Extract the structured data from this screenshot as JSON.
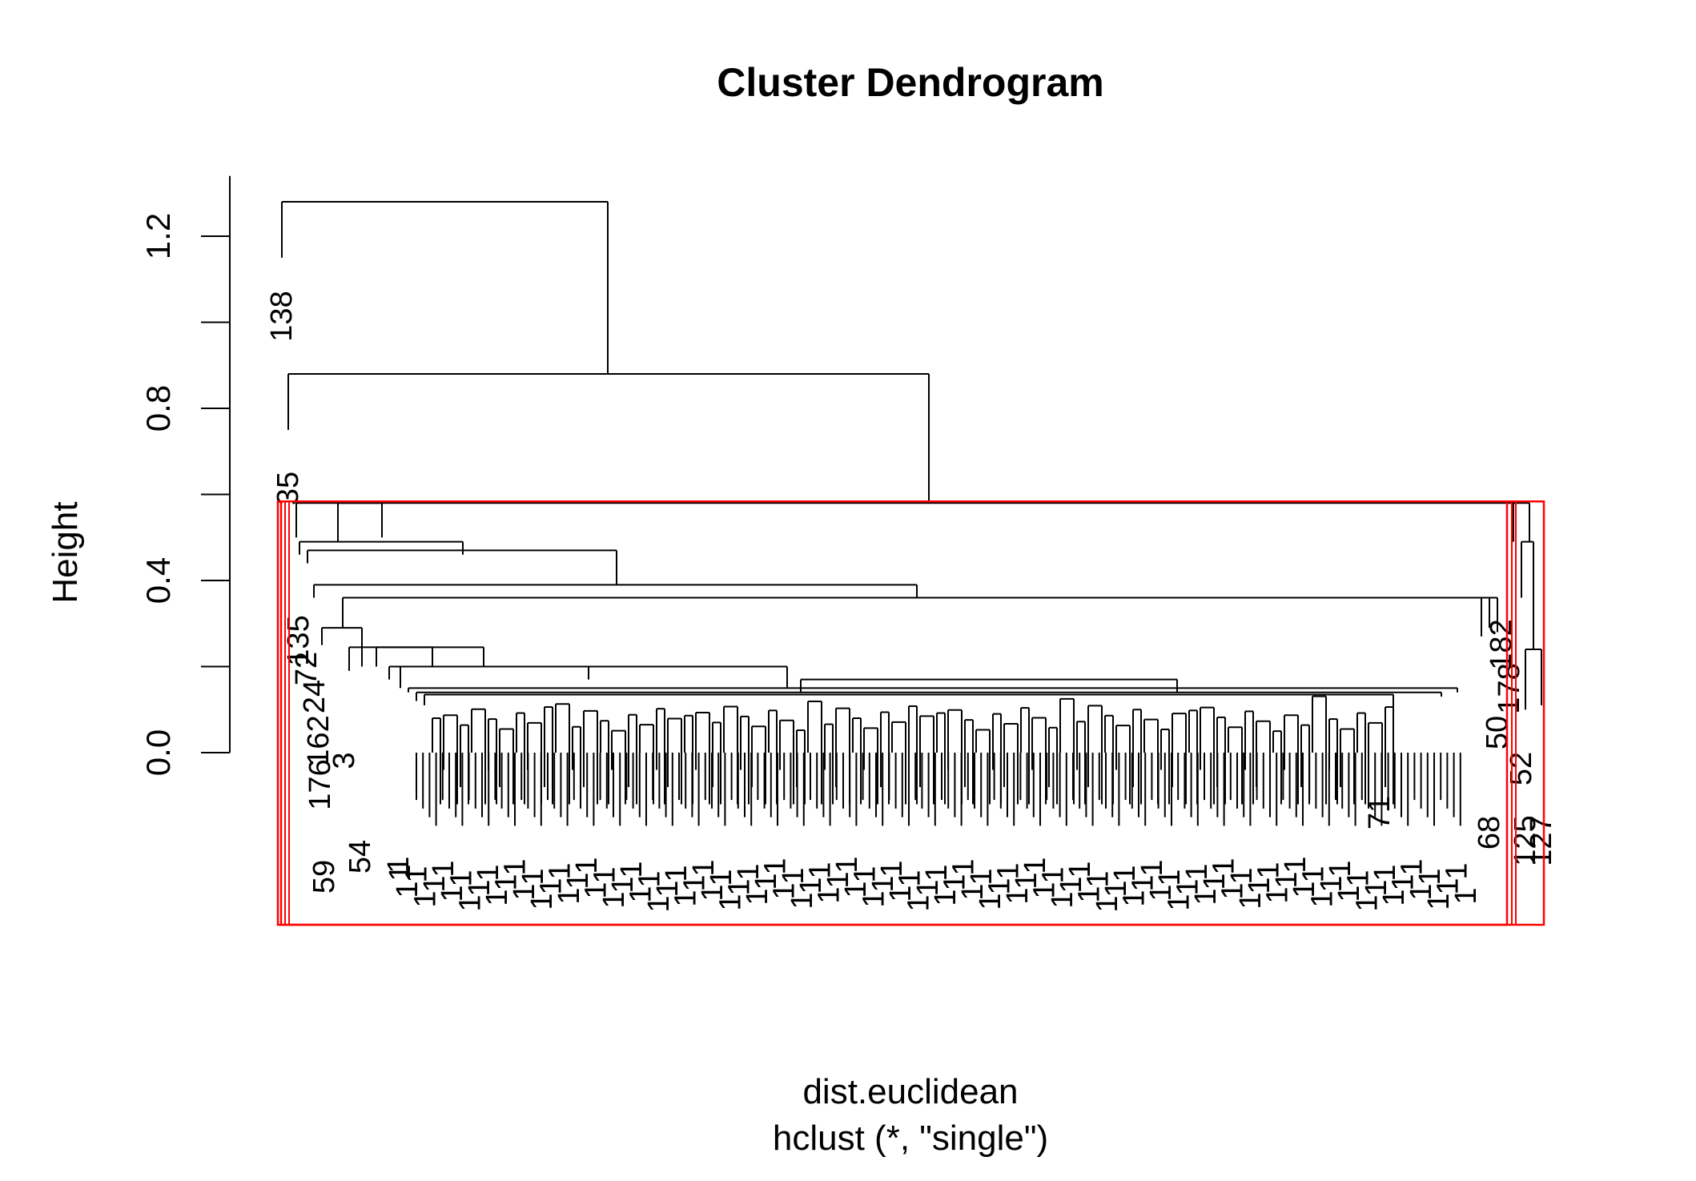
{
  "chart_data": {
    "type": "dendrogram",
    "title": "Cluster Dendrogram",
    "xlabel": "dist.euclidean",
    "sublabel": "hclust (*, \"single\")",
    "ylabel": "Height",
    "ylim": [
      0,
      1.3
    ],
    "yticks": [
      0.0,
      0.4,
      0.8,
      1.2
    ],
    "yticks_minor": [
      0.2,
      0.6,
      1.0
    ],
    "ytick_labels": [
      "0.0",
      "0.4",
      "0.8",
      "1.2"
    ],
    "colors": {
      "tree": "#000000",
      "highlight": "#ff0000"
    },
    "visible_leaf_labels": [
      "138",
      "35",
      "135",
      "72",
      "24",
      "162",
      "176",
      "59",
      "54",
      "50",
      "182",
      "178",
      "71",
      "68",
      "52",
      "125",
      "127",
      "1",
      "3"
    ],
    "merges": [
      {
        "height": 1.28,
        "left": "138",
        "right": "rest"
      },
      {
        "height": 0.88,
        "left": "35",
        "right": "main"
      },
      {
        "height": 0.58,
        "left": "main-cluster",
        "right": "right-cluster"
      },
      {
        "height": 0.49,
        "left": "left-subcluster",
        "right": "middle"
      },
      {
        "height": 0.47,
        "left": "subcluster",
        "right": "subcluster"
      },
      {
        "height": 0.39,
        "left": "subcluster",
        "right": "subcluster"
      },
      {
        "height": 0.36,
        "left": "big-cluster",
        "right": "182"
      },
      {
        "height": 0.29,
        "left": "subcluster",
        "right": "subcluster"
      }
    ],
    "highlight_boxes": [
      {
        "height": 0.58,
        "leaves": "all left group"
      },
      {
        "height": 0.58,
        "leaves": "right group"
      }
    ]
  }
}
